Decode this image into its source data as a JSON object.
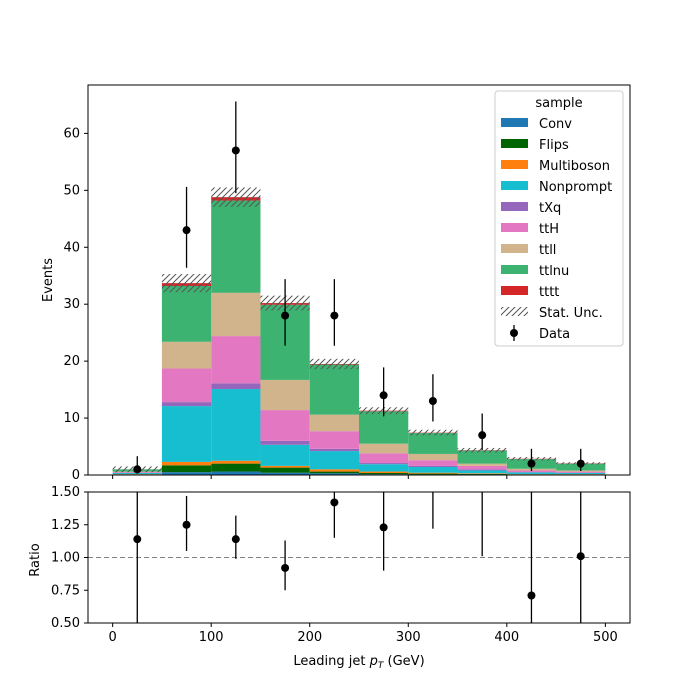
{
  "chart_data": [
    {
      "type": "stacked_histogram",
      "ylabel": "Events",
      "xlim": [
        -25,
        525
      ],
      "ylim": [
        0,
        68.5
      ],
      "yticks": [
        0,
        10,
        20,
        30,
        40,
        50,
        60
      ],
      "xticks": [
        0,
        100,
        200,
        300,
        400,
        500
      ],
      "bin_edges": [
        0,
        50,
        100,
        150,
        200,
        250,
        300,
        350,
        400,
        450,
        500
      ],
      "legend_title": "sample",
      "legend_position": "top-right",
      "series": [
        {
          "name": "Conv",
          "color": "#1f77b4",
          "values": [
            0.0,
            0.5,
            0.6,
            0.4,
            0.3,
            0.15,
            0.1,
            0.1,
            0.05,
            0.05
          ]
        },
        {
          "name": "Flips",
          "color": "#006400",
          "values": [
            0.1,
            1.2,
            1.4,
            0.9,
            0.3,
            0.2,
            0.15,
            0.1,
            0.05,
            0.05
          ]
        },
        {
          "name": "Multiboson",
          "color": "#ff7f0e",
          "values": [
            0.05,
            0.6,
            0.5,
            0.3,
            0.4,
            0.25,
            0.15,
            0.1,
            0.05,
            0.05
          ]
        },
        {
          "name": "Nonprompt",
          "color": "#17becf",
          "values": [
            0.2,
            9.8,
            12.6,
            3.7,
            3.2,
            1.3,
            1.0,
            0.5,
            0.3,
            0.2
          ]
        },
        {
          "name": "tXq",
          "color": "#9467bd",
          "values": [
            0.0,
            0.7,
            1.0,
            0.7,
            0.4,
            0.2,
            0.2,
            0.2,
            0.05,
            0.05
          ]
        },
        {
          "name": "ttH",
          "color": "#e377c2",
          "values": [
            0.15,
            5.9,
            8.3,
            5.4,
            3.1,
            1.7,
            1.0,
            0.6,
            0.3,
            0.2
          ]
        },
        {
          "name": "ttll",
          "color": "#d2b48c",
          "values": [
            0.1,
            4.7,
            7.6,
            5.3,
            2.9,
            1.7,
            1.1,
            0.4,
            0.3,
            0.2
          ]
        },
        {
          "name": "ttlnu",
          "color": "#3cb371",
          "values": [
            0.4,
            9.8,
            16.2,
            13.2,
            8.8,
            5.7,
            3.7,
            2.3,
            1.7,
            1.2
          ]
        },
        {
          "name": "tttt",
          "color": "#d62728",
          "values": [
            0.0,
            0.5,
            0.6,
            0.3,
            0.1,
            0.1,
            0.05,
            0.05,
            0.05,
            0.05
          ]
        }
      ],
      "stat_unc_label": "Stat. Unc.",
      "stat_unc": [
        0.5,
        1.6,
        1.7,
        1.3,
        0.9,
        0.6,
        0.5,
        0.4,
        0.3,
        0.2
      ],
      "data": {
        "name": "Data",
        "values": [
          1,
          43,
          57,
          28,
          28,
          14,
          13,
          7,
          2,
          2
        ],
        "err_low": [
          0.8,
          6.6,
          7.5,
          5.3,
          5.3,
          3.7,
          3.6,
          2.6,
          1.3,
          1.3
        ],
        "err_high": [
          2.3,
          7.6,
          8.6,
          6.4,
          6.4,
          4.9,
          4.7,
          3.8,
          2.6,
          2.6
        ]
      }
    },
    {
      "type": "scatter",
      "xlabel_prefix": "Leading jet ",
      "xlabel_var": "p",
      "xlabel_sub": "T",
      "xlabel_suffix": " (GeV)",
      "ylabel": "Ratio",
      "xlim": [
        -25,
        525
      ],
      "ylim": [
        0.5,
        1.5
      ],
      "yticks": [
        "0.50",
        "0.75",
        "1.00",
        "1.25",
        "1.50"
      ],
      "xticks": [
        "0",
        "100",
        "200",
        "300",
        "400",
        "500"
      ],
      "reference_line": 1.0,
      "x": [
        25,
        75,
        125,
        175,
        225,
        275,
        325,
        375,
        425,
        475
      ],
      "values": [
        1.14,
        1.25,
        1.14,
        0.92,
        1.42,
        1.23,
        null,
        null,
        0.71,
        1.01
      ],
      "err_low": [
        1.0,
        0.2,
        0.15,
        0.17,
        0.27,
        0.33,
        null,
        0.39,
        0.55,
        0.6
      ],
      "err_high": [
        1.5,
        0.22,
        0.18,
        0.21,
        0.31,
        0.39,
        0.3,
        0.55,
        1.0,
        1.0
      ]
    }
  ]
}
